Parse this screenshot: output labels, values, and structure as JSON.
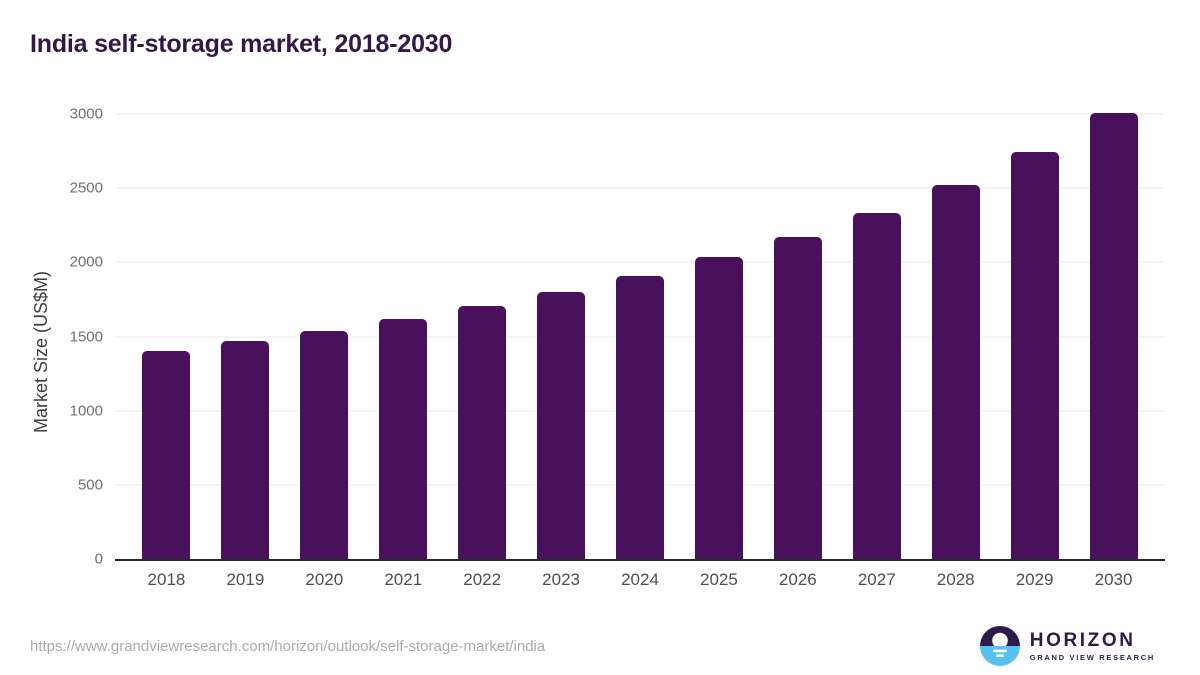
{
  "title": "India self-storage market, 2018-2030",
  "chart_data": {
    "type": "bar",
    "title": "India self-storage market, 2018-2030",
    "categories": [
      "2018",
      "2019",
      "2020",
      "2021",
      "2022",
      "2023",
      "2024",
      "2025",
      "2026",
      "2027",
      "2028",
      "2029",
      "2030"
    ],
    "values": [
      1400,
      1470,
      1535,
      1620,
      1705,
      1800,
      1910,
      2035,
      2170,
      2330,
      2520,
      2745,
      3005
    ],
    "xlabel": "",
    "ylabel": "Market Size (US$M)",
    "ylim": [
      0,
      3000
    ],
    "yticks": [
      0,
      500,
      1000,
      1500,
      2000,
      2500,
      3000
    ],
    "grid": true,
    "legend": "none",
    "bar_color": "#49115c"
  },
  "colors": {
    "bar": "#49115c",
    "title_text": "#311847",
    "gridline": "#e8e8e8",
    "axis_line": "#282828",
    "logo_purple": "#2e1a47",
    "logo_blue": "#5ac1ef"
  },
  "footer": {
    "source_url": "https://www.grandviewresearch.com/horizon/outlook/self-storage-market/india",
    "logo": {
      "name": "HORIZON",
      "subtitle": "GRAND VIEW RESEARCH"
    }
  }
}
